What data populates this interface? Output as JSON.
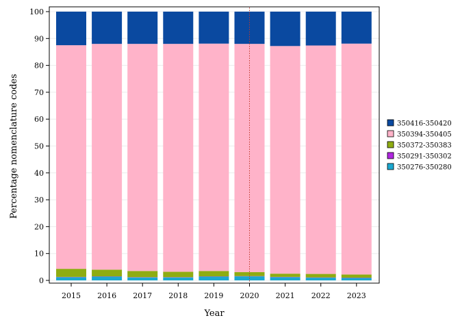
{
  "chart_data": {
    "type": "bar",
    "stacked": true,
    "title": "",
    "xlabel": "Year",
    "ylabel": "Percentage nomenclature codes",
    "ylim": [
      0,
      100
    ],
    "yticks": [
      0,
      10,
      20,
      30,
      40,
      50,
      60,
      70,
      80,
      90,
      100
    ],
    "grid": true,
    "legend_position": "right",
    "reference_line": {
      "x": "2020",
      "style": "dotted",
      "color": "#c0392b"
    },
    "categories": [
      "2015",
      "2016",
      "2017",
      "2018",
      "2019",
      "2020",
      "2021",
      "2022",
      "2023"
    ],
    "series": [
      {
        "name": "350276-350280",
        "color": "#1ba8d0",
        "values": [
          1.2,
          1.4,
          1.1,
          1.1,
          1.4,
          1.5,
          1.2,
          1.0,
          0.9
        ]
      },
      {
        "name": "350291-350302",
        "color": "#b027e0",
        "values": [
          0.1,
          0.1,
          0.1,
          0.1,
          0.1,
          0.1,
          0.1,
          0.1,
          0.1
        ]
      },
      {
        "name": "350372-350383",
        "color": "#8eac12",
        "values": [
          3.0,
          2.5,
          2.3,
          2.0,
          2.0,
          1.5,
          1.2,
          1.3,
          1.2
        ]
      },
      {
        "name": "350394-350405",
        "color": "#ffb3c9",
        "values": [
          83.2,
          84.0,
          84.5,
          84.8,
          84.6,
          84.9,
          84.7,
          85.0,
          85.9
        ]
      },
      {
        "name": "350416-350420",
        "color": "#0a49a0",
        "values": [
          12.5,
          12.0,
          12.0,
          12.0,
          11.9,
          12.0,
          12.8,
          12.6,
          11.9
        ]
      }
    ],
    "legend_order": [
      "350416-350420",
      "350394-350405",
      "350372-350383",
      "350291-350302",
      "350276-350280"
    ]
  }
}
